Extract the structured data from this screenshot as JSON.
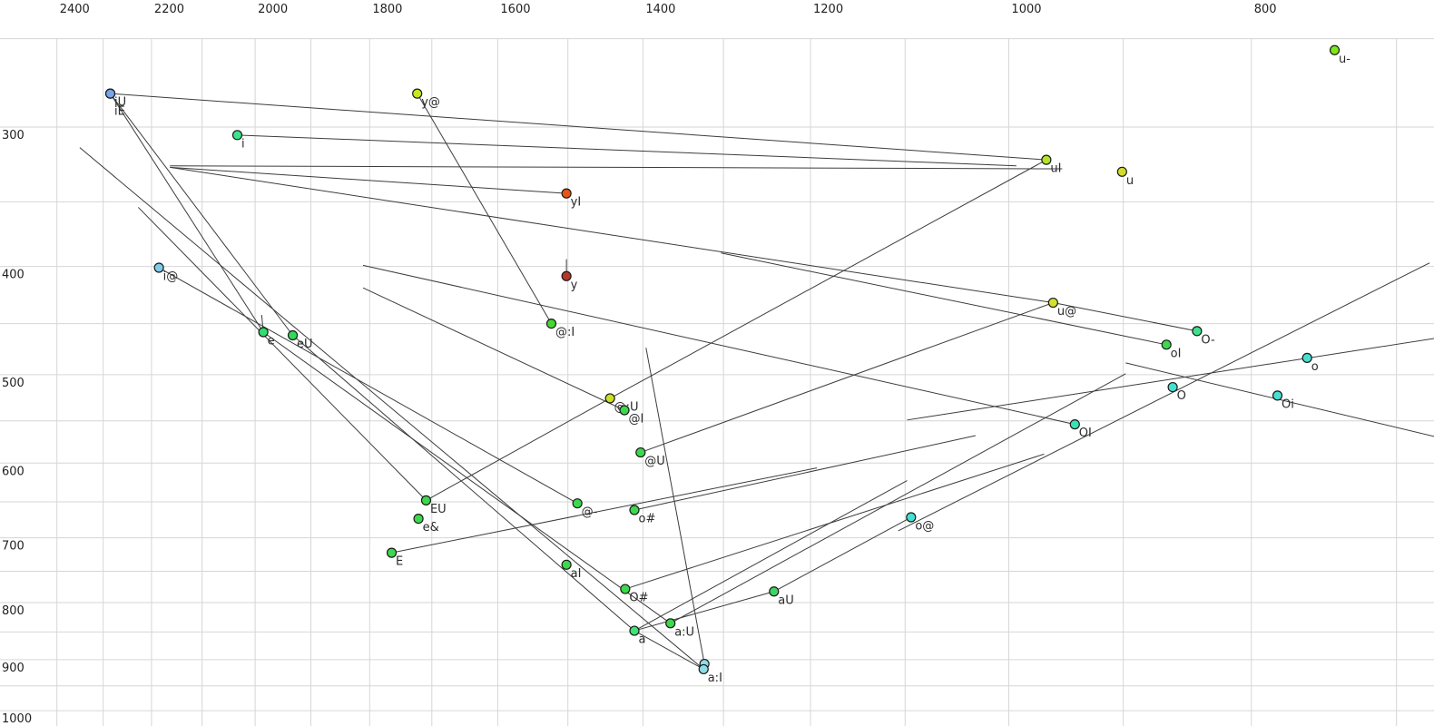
{
  "chart_data": {
    "type": "scatter",
    "title": "",
    "xlabel": "",
    "ylabel": "",
    "grid": true,
    "legend": "none",
    "x_axis": {
      "unit_values_hz": true,
      "scale": "log",
      "direction": "reversed",
      "ticks": [
        2400,
        2200,
        2000,
        1800,
        1600,
        1400,
        1200,
        1000,
        800
      ],
      "minor_gridline_step": 100,
      "gridline_min": 700,
      "gridline_max": 2400
    },
    "y_axis": {
      "scale": "log",
      "direction": "down",
      "ticks": [
        300,
        400,
        500,
        600,
        700,
        800,
        900,
        1000
      ],
      "minor_gridline_step": 50,
      "gridline_min": 250,
      "gridline_max": 1000
    },
    "points": [
      {
        "label": "iU",
        "f2": 2285,
        "f1": 280,
        "color": "#7aa4e8",
        "label_row": 0
      },
      {
        "label": "iE",
        "f2": 2285,
        "f1": 280,
        "color": "#7aa4e8",
        "label_row": 1
      },
      {
        "label": "i",
        "f2": 2033,
        "f1": 305,
        "color": "#3ee38e",
        "label_row": 0
      },
      {
        "label": "y@",
        "f2": 1723,
        "f1": 280,
        "color": "#c5e820",
        "label_row": 0
      },
      {
        "label": "yI",
        "f2": 1502,
        "f1": 344,
        "color": "#e85414",
        "label_row": 0
      },
      {
        "label": "y",
        "f2": 1502,
        "f1": 408,
        "color": "#b5372a",
        "label_row": 0
      },
      {
        "label": "u-",
        "f2": 741,
        "f1": 256,
        "color": "#7ce81a",
        "label_row": 0
      },
      {
        "label": "uI",
        "f2": 966,
        "f1": 321,
        "color": "#b2e427",
        "label_row": 0
      },
      {
        "label": "u",
        "f2": 901,
        "f1": 329,
        "color": "#d3dc2b",
        "label_row": 0
      },
      {
        "label": "i@",
        "f2": 2185,
        "f1": 401,
        "color": "#7fcbe8",
        "label_row": 0
      },
      {
        "label": "e",
        "f2": 1985,
        "f1": 458,
        "color": "#30dd70",
        "label_row": 0
      },
      {
        "label": "eU",
        "f2": 1932,
        "f1": 461,
        "color": "#30d957",
        "label_row": 0
      },
      {
        "label": "@:I",
        "f2": 1523,
        "f1": 450,
        "color": "#46d832",
        "label_row": 0
      },
      {
        "label": "u@",
        "f2": 960,
        "f1": 431,
        "color": "#d2e22b",
        "label_row": 0
      },
      {
        "label": "O-",
        "f2": 841,
        "f1": 457,
        "color": "#3fe08c",
        "label_row": 0
      },
      {
        "label": "oI",
        "f2": 865,
        "f1": 470,
        "color": "#3cd94d",
        "label_row": 0
      },
      {
        "label": "o",
        "f2": 760,
        "f1": 483,
        "color": "#45e0cf",
        "label_row": 0
      },
      {
        "label": "O",
        "f2": 860,
        "f1": 513,
        "color": "#45e0cf",
        "label_row": 0
      },
      {
        "label": "Oi",
        "f2": 781,
        "f1": 522,
        "color": "#45e0cf",
        "label_row": 0
      },
      {
        "label": "@:U",
        "f2": 1443,
        "f1": 525,
        "color": "#cbe020",
        "label_row": 0
      },
      {
        "label": "@I",
        "f2": 1424,
        "f1": 538,
        "color": "#3cd94d",
        "label_row": 0
      },
      {
        "label": "OI",
        "f2": 941,
        "f1": 554,
        "color": "#3ce0b4",
        "label_row": 0
      },
      {
        "label": "@U",
        "f2": 1403,
        "f1": 587,
        "color": "#3cd94d",
        "label_row": 0
      },
      {
        "label": "EU",
        "f2": 1709,
        "f1": 648,
        "color": "#3cd94d",
        "label_row": 0
      },
      {
        "label": "e&",
        "f2": 1721,
        "f1": 673,
        "color": "#3cd94d",
        "label_row": 0
      },
      {
        "label": "@-",
        "f2": 1487,
        "f1": 652,
        "color": "#3cd94d",
        "label_row": 0
      },
      {
        "label": "o#",
        "f2": 1411,
        "f1": 661,
        "color": "#3cd94d",
        "label_row": 0
      },
      {
        "label": "o@",
        "f2": 1094,
        "f1": 671,
        "color": "#45e0cf",
        "label_row": 0
      },
      {
        "label": "E",
        "f2": 1764,
        "f1": 722,
        "color": "#3cd94d",
        "label_row": 0
      },
      {
        "label": "aI",
        "f2": 1502,
        "f1": 740,
        "color": "#3cd94d",
        "label_row": 0
      },
      {
        "label": "O#",
        "f2": 1423,
        "f1": 778,
        "color": "#3cd94d",
        "label_row": 0
      },
      {
        "label": "aU",
        "f2": 1241,
        "f1": 782,
        "color": "#3ed466",
        "label_row": 0
      },
      {
        "label": "a",
        "f2": 1411,
        "f1": 848,
        "color": "#3ee376",
        "label_row": 0
      },
      {
        "label": "a:U",
        "f2": 1365,
        "f1": 835,
        "color": "#3cd94d",
        "label_row": 0
      },
      {
        "label": "",
        "f2": 1323,
        "f1": 908,
        "color": "#8edce8",
        "label_row": 0
      },
      {
        "label": "a:I",
        "f2": 1324,
        "f1": 918,
        "color": "#8edce8",
        "label_row": 0
      }
    ],
    "segments": [
      [
        2285,
        280,
        966,
        321
      ],
      [
        2285,
        280,
        1985,
        458
      ],
      [
        2285,
        280,
        1932,
        461
      ],
      [
        2227,
        354,
        1709,
        648
      ],
      [
        2350,
        313,
        1324,
        918
      ],
      [
        2163,
        326,
        1502,
        344
      ],
      [
        2163,
        326,
        960,
        431
      ],
      [
        2163,
        325,
        952,
        327
      ],
      [
        2033,
        305,
        993,
        325
      ],
      [
        1723,
        280,
        1523,
        450
      ],
      [
        1502,
        394,
        1502,
        408
      ],
      [
        1988,
        442,
        1985,
        458
      ],
      [
        2185,
        401,
        1487,
        652
      ],
      [
        1985,
        458,
        1365,
        835
      ],
      [
        1932,
        461,
        1411,
        848
      ],
      [
        960,
        431,
        841,
        457
      ],
      [
        1403,
        587,
        960,
        431
      ],
      [
        1396,
        473,
        1323,
        908
      ],
      [
        1411,
        848,
        1241,
        782
      ],
      [
        1411,
        848,
        1324,
        918
      ],
      [
        1241,
        782,
        1094,
        671
      ],
      [
        1365,
        835,
        898,
        499
      ],
      [
        1709,
        648,
        1443,
        525
      ],
      [
        966,
        321,
        1443,
        525
      ],
      [
        1811,
        418,
        1424,
        538
      ],
      [
        1811,
        399,
        941,
        554
      ],
      [
        1303,
        389,
        865,
        470
      ],
      [
        1423,
        778,
        968,
        589
      ],
      [
        1411,
        661,
        1031,
        567
      ],
      [
        1764,
        722,
        1193,
        606
      ],
      [
        1098,
        549,
        676,
        464
      ],
      [
        898,
        488,
        676,
        568
      ],
      [
        1107,
        690,
        679,
        397
      ],
      [
        1411,
        848,
        1098,
        622
      ]
    ]
  }
}
